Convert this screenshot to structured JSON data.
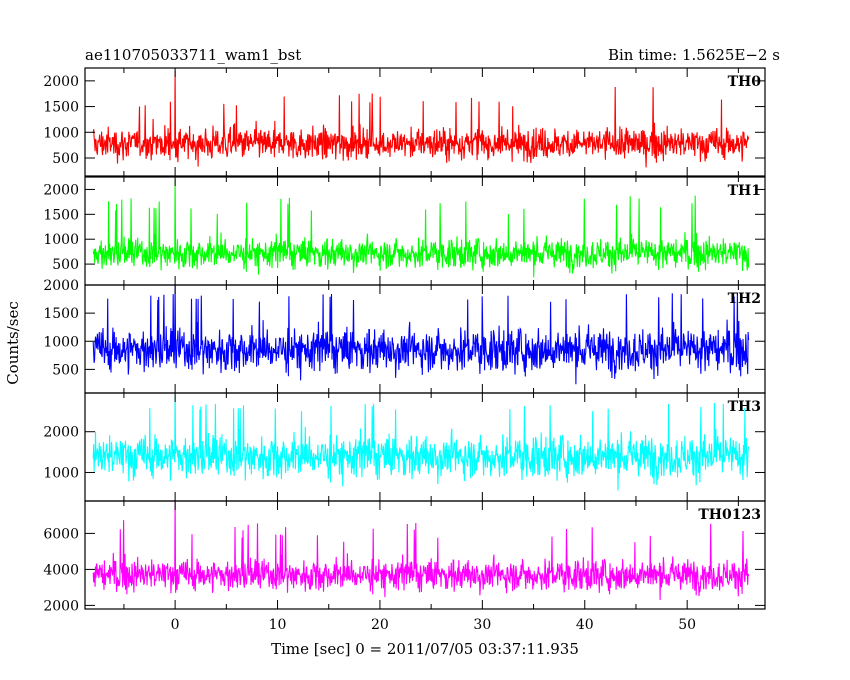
{
  "header": {
    "title": "ae110705033711_wam1_bst",
    "bin_time": "Bin time: 1.5625E−2 s"
  },
  "ylabel": "Counts/sec",
  "xlabel": "Time [sec] 0 = 2011/07/05 03:37:11.935",
  "chart_data": {
    "type": "line",
    "title": "ae110705033711_wam1_bst",
    "subtitle": "Bin time: 1.5625E−2 s",
    "xlabel": "Time [sec] 0 = 2011/07/05 03:37:11.935",
    "ylabel": "Counts/sec",
    "xlim": [
      -8.8,
      57.6
    ],
    "x_ticks": [
      0,
      10,
      20,
      30,
      40,
      50
    ],
    "x_range": [
      -8,
      56
    ],
    "bin_time": 0.015625,
    "grid": false,
    "legend": "none",
    "panels": [
      {
        "name": "TH0",
        "color": "#ff0000",
        "ylim": [
          150,
          2250
        ],
        "y_ticks": [
          500,
          1000,
          1500,
          2000
        ],
        "mean": 780,
        "spread": 260,
        "typical_min": 250,
        "typical_max": 1500,
        "peak": 2200,
        "peak_time": 0
      },
      {
        "name": "TH1",
        "color": "#00ff00",
        "ylim": [
          80,
          2250
        ],
        "y_ticks": [
          500,
          1000,
          1500,
          2000
        ],
        "mean": 720,
        "spread": 260,
        "typical_min": 200,
        "typical_max": 1500,
        "peak": 2200,
        "peak_time": 0
      },
      {
        "name": "TH2",
        "color": "#0000ff",
        "ylim": [
          80,
          2000
        ],
        "y_ticks": [
          500,
          1000,
          1500,
          2000
        ],
        "mean": 850,
        "spread": 330,
        "typical_min": 200,
        "typical_max": 1700,
        "peak": 2000,
        "peak_time": 0
      },
      {
        "name": "TH3",
        "color": "#00ffff",
        "ylim": [
          300,
          2950
        ],
        "y_ticks": [
          1000,
          2000
        ],
        "mean": 1400,
        "spread": 450,
        "typical_min": 400,
        "typical_max": 2500,
        "peak": 2900,
        "peak_time": 0
      },
      {
        "name": "TH0123",
        "color": "#ff00ff",
        "ylim": [
          1800,
          7800
        ],
        "y_ticks": [
          2000,
          4000,
          6000
        ],
        "mean": 3700,
        "spread": 750,
        "typical_min": 2000,
        "typical_max": 5500,
        "peak": 7800,
        "peak_time": 0
      }
    ]
  }
}
